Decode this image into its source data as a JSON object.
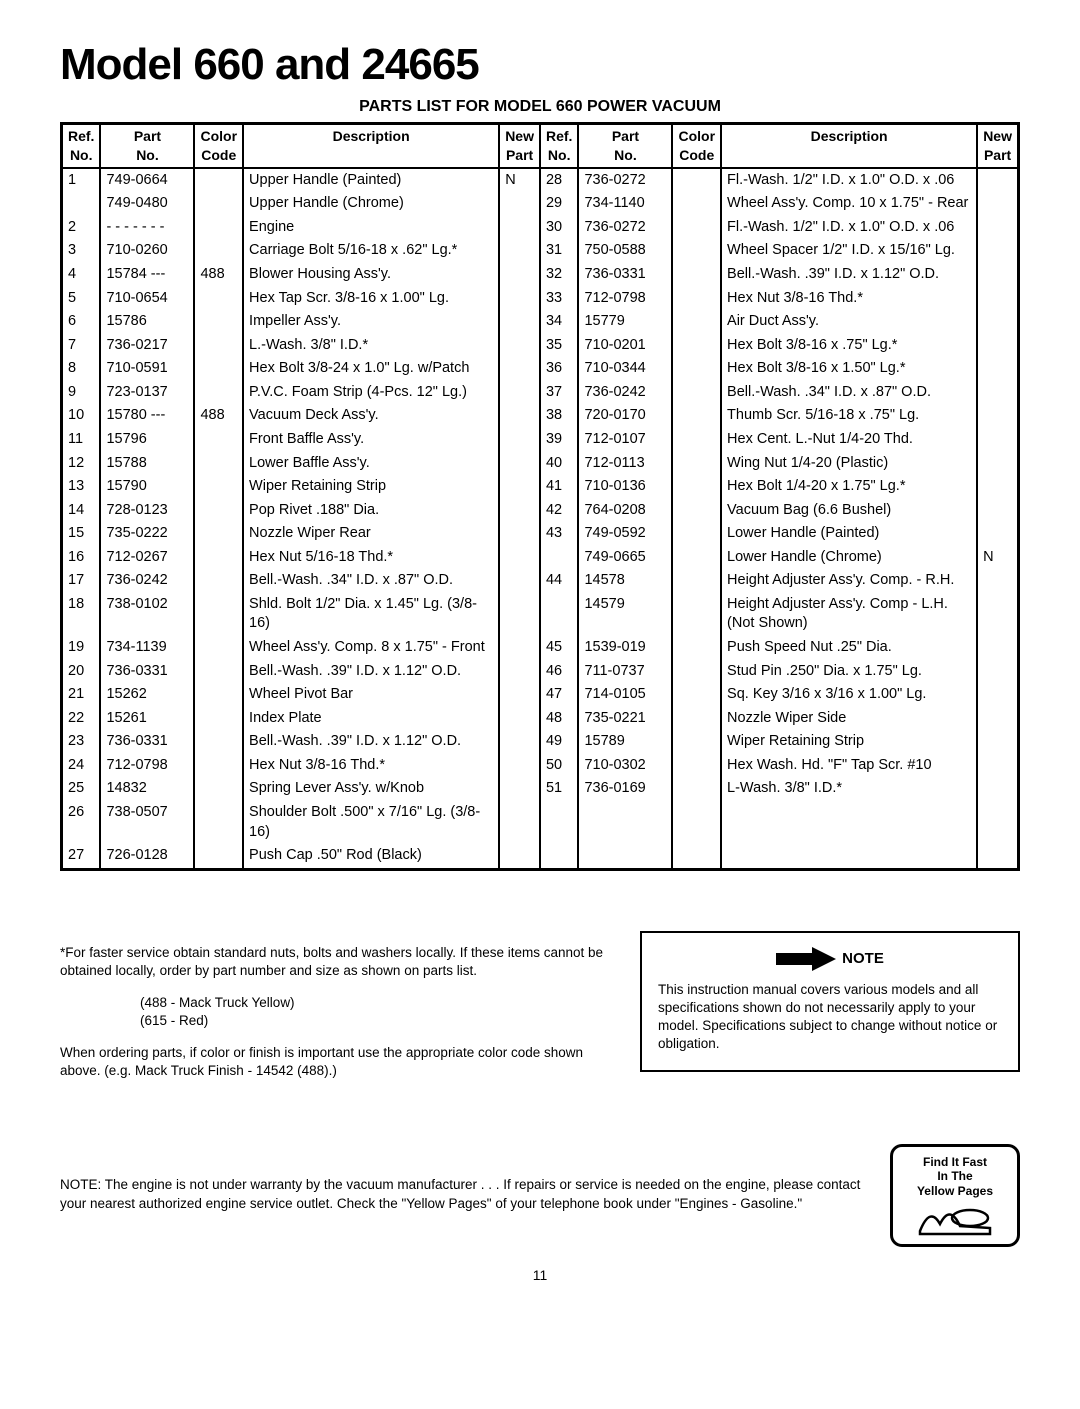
{
  "title": "Model 660 and 24665",
  "subtitle": "PARTS LIST FOR MODEL 660 POWER VACUUM",
  "headers": {
    "ref": "Ref.\nNo.",
    "part": "Part\nNo.",
    "color": "Color\nCode",
    "desc": "Description",
    "new": "New\nPart"
  },
  "rows_left": [
    {
      "ref": "1",
      "part": "749-0664",
      "color": "",
      "desc": "Upper Handle (Painted)",
      "new": "N"
    },
    {
      "ref": "",
      "part": "749-0480",
      "color": "",
      "desc": "Upper Handle (Chrome)",
      "new": ""
    },
    {
      "ref": "2",
      "part": "- - - - - - -",
      "color": "",
      "desc": "Engine",
      "new": ""
    },
    {
      "ref": "3",
      "part": "710-0260",
      "color": "",
      "desc": "Carriage Bolt 5/16-18 x .62\" Lg.*",
      "new": ""
    },
    {
      "ref": "4",
      "part": "15784 ---",
      "color": "488",
      "desc": "Blower Housing Ass'y.",
      "new": ""
    },
    {
      "ref": "5",
      "part": "710-0654",
      "color": "",
      "desc": "Hex Tap Scr. 3/8-16 x 1.00\" Lg.",
      "new": ""
    },
    {
      "ref": "6",
      "part": "15786",
      "color": "",
      "desc": "Impeller Ass'y.",
      "new": ""
    },
    {
      "ref": "7",
      "part": "736-0217",
      "color": "",
      "desc": "L.-Wash. 3/8\" I.D.*",
      "new": ""
    },
    {
      "ref": "8",
      "part": "710-0591",
      "color": "",
      "desc": "Hex Bolt 3/8-24 x 1.0\" Lg. w/Patch",
      "new": ""
    },
    {
      "ref": "9",
      "part": "723-0137",
      "color": "",
      "desc": "P.V.C. Foam Strip (4-Pcs. 12\" Lg.)",
      "new": ""
    },
    {
      "ref": "10",
      "part": "15780 ---",
      "color": "488",
      "desc": "Vacuum Deck Ass'y.",
      "new": ""
    },
    {
      "ref": "11",
      "part": "15796",
      "color": "",
      "desc": "Front Baffle Ass'y.",
      "new": ""
    },
    {
      "ref": "12",
      "part": "15788",
      "color": "",
      "desc": "Lower Baffle Ass'y.",
      "new": ""
    },
    {
      "ref": "13",
      "part": "15790",
      "color": "",
      "desc": "Wiper Retaining Strip",
      "new": ""
    },
    {
      "ref": "14",
      "part": "728-0123",
      "color": "",
      "desc": "Pop Rivet .188\" Dia.",
      "new": ""
    },
    {
      "ref": "15",
      "part": "735-0222",
      "color": "",
      "desc": "Nozzle Wiper Rear",
      "new": ""
    },
    {
      "ref": "16",
      "part": "712-0267",
      "color": "",
      "desc": "Hex Nut 5/16-18 Thd.*",
      "new": ""
    },
    {
      "ref": "17",
      "part": "736-0242",
      "color": "",
      "desc": "Bell.-Wash. .34\" I.D. x .87\" O.D.",
      "new": ""
    },
    {
      "ref": "18",
      "part": "738-0102",
      "color": "",
      "desc": "Shld. Bolt 1/2\" Dia. x 1.45\" Lg. (3/8-16)",
      "new": ""
    },
    {
      "ref": "19",
      "part": "734-1139",
      "color": "",
      "desc": "Wheel Ass'y. Comp. 8 x 1.75\" - Front",
      "new": ""
    },
    {
      "ref": "20",
      "part": "736-0331",
      "color": "",
      "desc": "Bell.-Wash. .39\" I.D. x 1.12\" O.D.",
      "new": ""
    },
    {
      "ref": "21",
      "part": "15262",
      "color": "",
      "desc": "Wheel Pivot Bar",
      "new": ""
    },
    {
      "ref": "22",
      "part": "15261",
      "color": "",
      "desc": "Index Plate",
      "new": ""
    },
    {
      "ref": "23",
      "part": "736-0331",
      "color": "",
      "desc": "Bell.-Wash. .39\" I.D. x 1.12\" O.D.",
      "new": ""
    },
    {
      "ref": "24",
      "part": "712-0798",
      "color": "",
      "desc": "Hex Nut 3/8-16 Thd.*",
      "new": ""
    },
    {
      "ref": "25",
      "part": "14832",
      "color": "",
      "desc": "Spring Lever Ass'y. w/Knob",
      "new": ""
    },
    {
      "ref": "26",
      "part": "738-0507",
      "color": "",
      "desc": "Shoulder Bolt .500\" x 7/16\" Lg. (3/8-16)",
      "new": ""
    },
    {
      "ref": "27",
      "part": "726-0128",
      "color": "",
      "desc": "Push Cap .50\" Rod (Black)",
      "new": ""
    }
  ],
  "rows_right": [
    {
      "ref": "28",
      "part": "736-0272",
      "color": "",
      "desc": "Fl.-Wash. 1/2\" I.D. x 1.0\" O.D. x .06",
      "new": ""
    },
    {
      "ref": "29",
      "part": "734-1140",
      "color": "",
      "desc": "Wheel Ass'y. Comp. 10 x 1.75\" - Rear",
      "new": ""
    },
    {
      "ref": "30",
      "part": "736-0272",
      "color": "",
      "desc": "Fl.-Wash. 1/2\" I.D. x 1.0\" O.D. x .06",
      "new": ""
    },
    {
      "ref": "31",
      "part": "750-0588",
      "color": "",
      "desc": "Wheel Spacer 1/2\" I.D. x 15/16\" Lg.",
      "new": ""
    },
    {
      "ref": "32",
      "part": "736-0331",
      "color": "",
      "desc": "Bell.-Wash. .39\" I.D. x 1.12\" O.D.",
      "new": ""
    },
    {
      "ref": "33",
      "part": "712-0798",
      "color": "",
      "desc": "Hex Nut 3/8-16 Thd.*",
      "new": ""
    },
    {
      "ref": "34",
      "part": "15779",
      "color": "",
      "desc": "Air Duct Ass'y.",
      "new": ""
    },
    {
      "ref": "35",
      "part": "710-0201",
      "color": "",
      "desc": "Hex Bolt 3/8-16 x .75\" Lg.*",
      "new": ""
    },
    {
      "ref": "36",
      "part": "710-0344",
      "color": "",
      "desc": "Hex Bolt 3/8-16 x 1.50\" Lg.*",
      "new": ""
    },
    {
      "ref": "37",
      "part": "736-0242",
      "color": "",
      "desc": "Bell.-Wash. .34\" I.D. x .87\" O.D.",
      "new": ""
    },
    {
      "ref": "38",
      "part": "720-0170",
      "color": "",
      "desc": "Thumb Scr. 5/16-18 x .75\" Lg.",
      "new": ""
    },
    {
      "ref": "39",
      "part": "712-0107",
      "color": "",
      "desc": "Hex Cent. L.-Nut 1/4-20 Thd.",
      "new": ""
    },
    {
      "ref": "40",
      "part": "712-0113",
      "color": "",
      "desc": "Wing Nut 1/4-20 (Plastic)",
      "new": ""
    },
    {
      "ref": "41",
      "part": "710-0136",
      "color": "",
      "desc": "Hex Bolt 1/4-20 x 1.75\" Lg.*",
      "new": ""
    },
    {
      "ref": "42",
      "part": "764-0208",
      "color": "",
      "desc": "Vacuum Bag  (6.6 Bushel)",
      "new": ""
    },
    {
      "ref": "43",
      "part": "749-0592",
      "color": "",
      "desc": "Lower Handle (Painted)",
      "new": ""
    },
    {
      "ref": "",
      "part": "749-0665",
      "color": "",
      "desc": "Lower Handle (Chrome)",
      "new": "N"
    },
    {
      "ref": "44",
      "part": "14578",
      "color": "",
      "desc": "Height Adjuster Ass'y. Comp. - R.H.",
      "new": ""
    },
    {
      "ref": "",
      "part": "14579",
      "color": "",
      "desc": "Height Adjuster Ass'y. Comp - L.H. (Not Shown)",
      "new": ""
    },
    {
      "ref": "45",
      "part": "1539-019",
      "color": "",
      "desc": "Push Speed Nut .25\" Dia.",
      "new": ""
    },
    {
      "ref": "46",
      "part": "711-0737",
      "color": "",
      "desc": "Stud Pin .250\" Dia. x 1.75\" Lg.",
      "new": ""
    },
    {
      "ref": "47",
      "part": "714-0105",
      "color": "",
      "desc": "Sq. Key 3/16 x 3/16 x 1.00\" Lg.",
      "new": ""
    },
    {
      "ref": "48",
      "part": "735-0221",
      "color": "",
      "desc": "Nozzle Wiper Side",
      "new": ""
    },
    {
      "ref": "49",
      "part": "15789",
      "color": "",
      "desc": "Wiper Retaining Strip",
      "new": ""
    },
    {
      "ref": "50",
      "part": "710-0302",
      "color": "",
      "desc": "Hex Wash. Hd. \"F\" Tap Scr. #10",
      "new": ""
    },
    {
      "ref": "51",
      "part": "736-0169",
      "color": "",
      "desc": "L-Wash. 3/8\" I.D.*",
      "new": ""
    }
  ],
  "footnote_star": "*For faster service obtain standard nuts, bolts and washers locally. If these items cannot be obtained locally, order by part number and size as shown on parts list.",
  "color_488": "(488 - Mack Truck Yellow)",
  "color_615": "(615 - Red)",
  "ordering_note": "When ordering parts, if color or finish is important use the appropriate color code shown above. (e.g. Mack Truck Finish - 14542 (488).)",
  "note_label": "NOTE",
  "note_body": "This instruction manual covers various models and all specifications shown do not necessarily apply to your model. Specifications subject to change without notice or obligation.",
  "engine_note": "NOTE: The engine is not under warranty by the vacuum manufacturer . . . If repairs or service is needed on the engine, please contact your nearest authorized engine service outlet. Check the \"Yellow Pages\" of your telephone book under \"Engines - Gasoline.\"",
  "yp_line1": "Find It Fast",
  "yp_line2": "In The",
  "yp_line3": "Yellow Pages",
  "pagenum": "11"
}
